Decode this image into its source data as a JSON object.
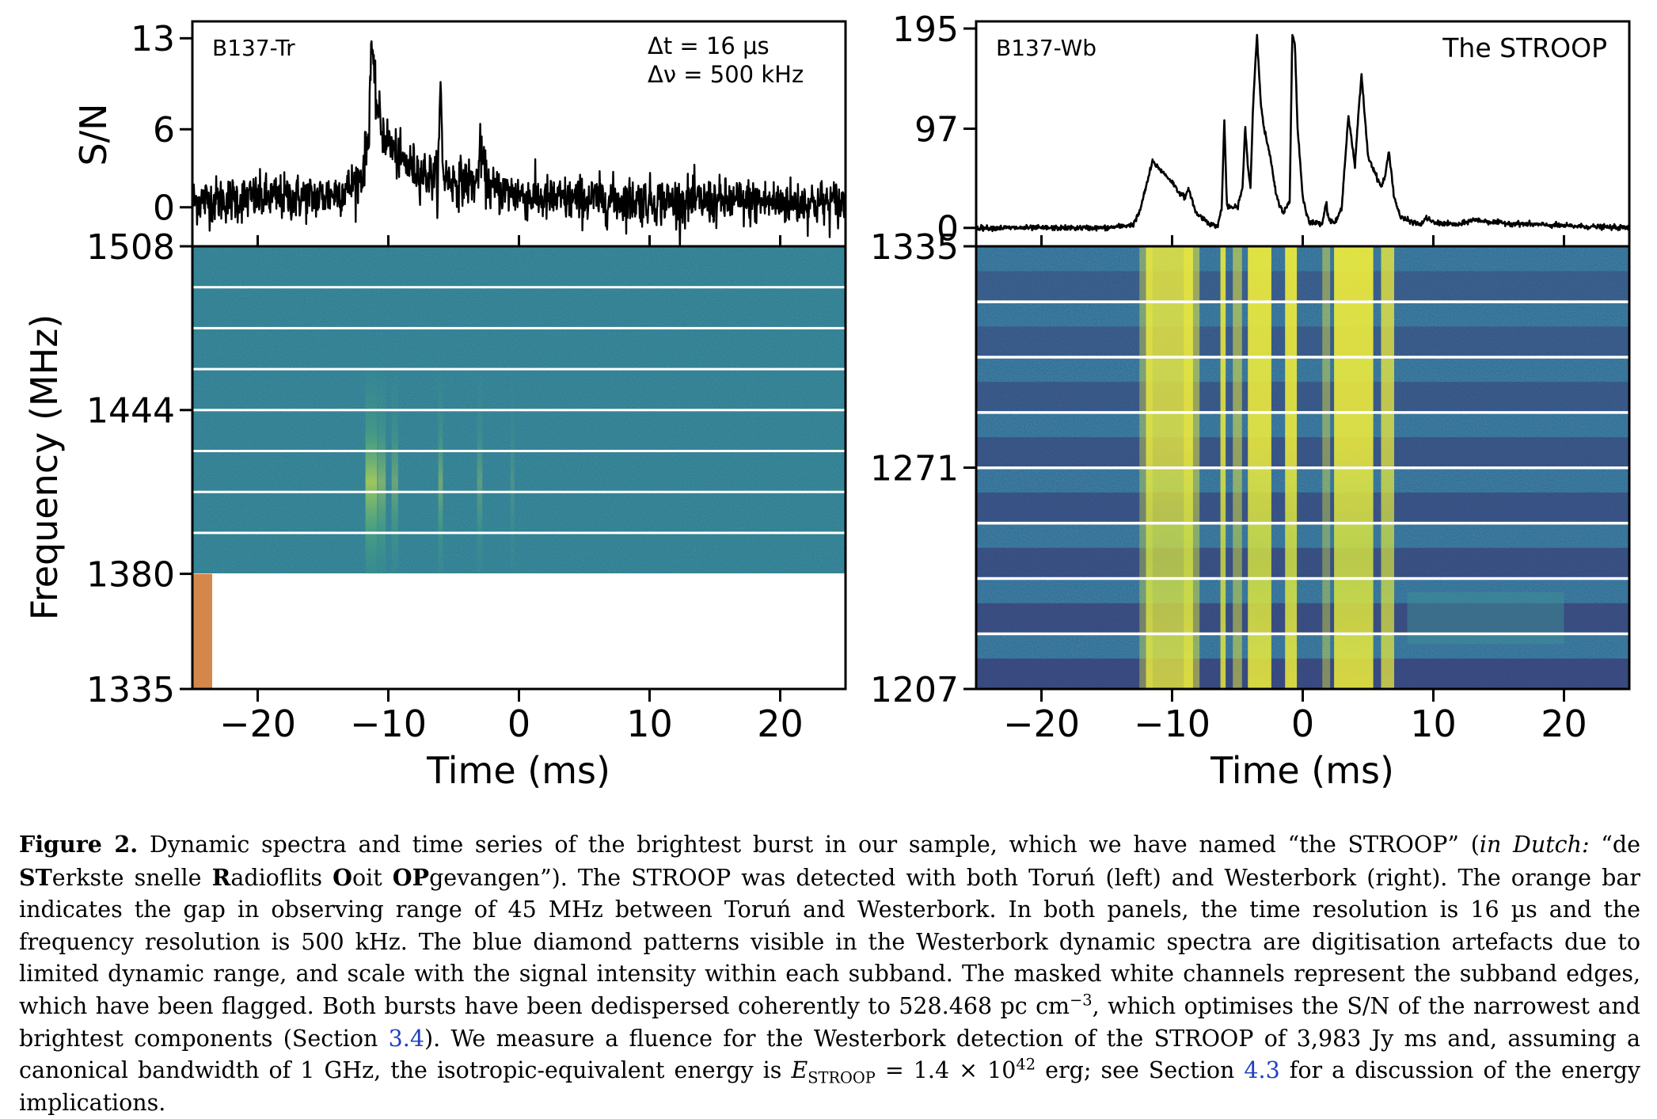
{
  "chart_data": [
    {
      "type": "line",
      "panel": "left-timeseries",
      "label": "B137-Tr",
      "annotation_lines": [
        "Δt  = 16 μs",
        "Δν  = 500 kHz"
      ],
      "ylabel": "S/N",
      "yticks": [
        "13",
        "6",
        "0"
      ],
      "ytick_values": [
        13,
        6,
        0
      ],
      "ylim": [
        -3,
        14.3
      ],
      "xlim": [
        -25,
        25
      ],
      "x": [
        -25,
        -20,
        -15,
        -13,
        -12,
        -11.5,
        -11.3,
        -11.1,
        -10.8,
        -10.5,
        -10,
        -9,
        -8,
        -7,
        -6.2,
        -6,
        -5.8,
        -5,
        -4,
        -3.2,
        -3,
        -2.5,
        -2,
        -1,
        0,
        1,
        2,
        5,
        10,
        15,
        20,
        25
      ],
      "y": [
        0.5,
        0.7,
        0.8,
        1.5,
        2.5,
        5.5,
        13.2,
        9.5,
        7.5,
        6,
        5,
        3.5,
        3,
        2.5,
        2.2,
        9.3,
        2.5,
        2,
        2,
        1.8,
        4.5,
        2,
        1.3,
        1.2,
        1,
        0.8,
        0.6,
        0.6,
        0.5,
        0.4,
        0.4,
        0.3
      ],
      "noise_std": 0.9
    },
    {
      "type": "line",
      "panel": "right-timeseries",
      "label": "B137-Wb",
      "title": "The STROOP",
      "yticks": [
        "195",
        "97",
        "0"
      ],
      "ytick_values": [
        195,
        97,
        0
      ],
      "ylim": [
        -18,
        202
      ],
      "xlim": [
        -25,
        25
      ],
      "x": [
        -25,
        -15,
        -13,
        -12.5,
        -12,
        -11.5,
        -10,
        -9.5,
        -9,
        -8.7,
        -8.2,
        -7,
        -6.5,
        -6.2,
        -6,
        -5.8,
        -5,
        -4.6,
        -4.4,
        -4.2,
        -4,
        -3.8,
        -3.5,
        -3.2,
        -3,
        -2.5,
        -2,
        -1.5,
        -1,
        -0.8,
        -0.6,
        -0.4,
        0,
        0.5,
        1.5,
        1.8,
        2,
        2.5,
        3,
        3.2,
        3.5,
        3.8,
        4,
        4.2,
        4.5,
        5,
        5.5,
        6,
        6.3,
        6.6,
        7,
        7.5,
        9,
        9.5,
        10,
        12,
        13,
        15,
        20,
        25
      ],
      "y": [
        0,
        0,
        3,
        15,
        40,
        65,
        45,
        35,
        30,
        38,
        15,
        3,
        2,
        20,
        105,
        20,
        20,
        40,
        100,
        60,
        40,
        120,
        190,
        120,
        100,
        70,
        30,
        15,
        25,
        190,
        180,
        100,
        30,
        5,
        5,
        25,
        8,
        5,
        20,
        60,
        110,
        80,
        60,
        100,
        150,
        70,
        55,
        40,
        50,
        75,
        30,
        10,
        3,
        10,
        5,
        3,
        8,
        5,
        2,
        0
      ],
      "noise_std": 1.2
    },
    {
      "type": "heatmap",
      "panel": "left-dynamic-spectrum",
      "ylabel": "Frequency (MHz)",
      "xlabel": "Time (ms)",
      "xticks": [
        "−20",
        "−10",
        "0",
        "10",
        "20"
      ],
      "xtick_values": [
        -20,
        -10,
        0,
        10,
        20
      ],
      "yticks": [
        "1508",
        "1444",
        "1380",
        "1335"
      ],
      "ytick_values": [
        1508,
        1444,
        1380,
        1335
      ],
      "ylim": [
        1335,
        1508
      ],
      "data_range_mhz": [
        1380,
        1508
      ],
      "xlim": [
        -25,
        25
      ],
      "subband_edges_mhz": [
        1492,
        1476,
        1460,
        1444,
        1428,
        1412,
        1396
      ],
      "gap_bar_mhz": [
        1335,
        1380
      ],
      "gap_bar_color": "#d4874a"
    },
    {
      "type": "heatmap",
      "panel": "right-dynamic-spectrum",
      "xlabel": "Time (ms)",
      "xticks": [
        "−20",
        "−10",
        "0",
        "10",
        "20"
      ],
      "xtick_values": [
        -20,
        -10,
        0,
        10,
        20
      ],
      "yticks": [
        "1335",
        "1271",
        "1207"
      ],
      "ytick_values": [
        1335,
        1271,
        1207
      ],
      "ylim": [
        1207,
        1335
      ],
      "xlim": [
        -25,
        25
      ],
      "subband_edges_mhz": [
        1319,
        1303,
        1287,
        1271,
        1255,
        1239,
        1223
      ]
    }
  ],
  "colors": {
    "line": "#000000",
    "background_teal": "#2b7f8e",
    "bright_yellow": "#f0f044",
    "mid_green": "#3eb37a",
    "dark_blue": "#3b3f8a",
    "mask": "#ffffff",
    "gap_bar": "#d4874a"
  },
  "caption": {
    "label": "Figure 2.",
    "t1": " Dynamic spectra and time series of the brightest burst in our sample, which we have named “the STROOP” (",
    "dutch": "in Dutch:",
    "t2": " “de ",
    "b_st": "ST",
    "t3": "erkste snelle ",
    "b_r": "R",
    "t4": "adioflits ",
    "b_o": "O",
    "t5": "oit ",
    "b_op": "OP",
    "t6": "gevangen”). The STROOP was detected with both Toruń (left) and Westerbork (right). The orange bar indicates the gap in observing range of 45 MHz between Toruń and Westerbork. In both panels, the time resolution is 16 µs and the frequency resolution is 500 kHz. The blue diamond patterns visible in the Westerbork dynamic spectra are digitisation artefacts due to limited dynamic range, and scale with the signal intensity within each subband. The masked white channels represent the subband edges, which have been flagged. Both bursts have been dedispersed coherently to 528.468 pc cm",
    "sup1": "−3",
    "t7": ", which optimises the S/N of the narrowest and brightest components (Section ",
    "ref1": "3.4",
    "t8": "). We measure a fluence for the Westerbork detection of the STROOP of 3,983 Jy ms and, assuming a canonical bandwidth of 1 GHz, the isotropic-equivalent energy is ",
    "e_sym": "E",
    "e_sub": "STROOP",
    "t9": " = 1.4 × 10",
    "sup2": "42",
    "t10": " erg; see Section ",
    "ref2": "4.3",
    "t11": " for a discussion of the energy implications."
  }
}
